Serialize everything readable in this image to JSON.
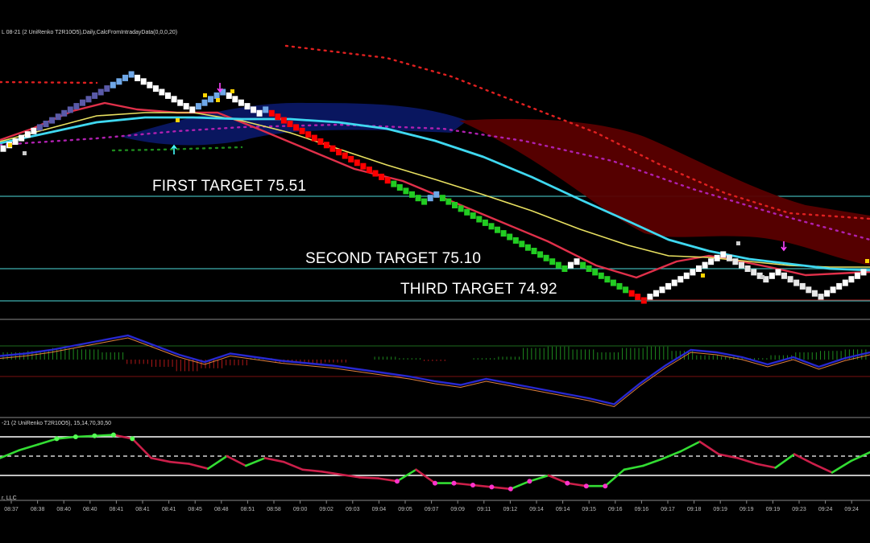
{
  "header": {
    "main_title": "L 08-21 (2 UniRenko T2R10O5),Daily,CalcFromIntradayData(0,0,0,20)",
    "osc_title": "-21 (2 UniRenko T2R10O5), 15,14,70,30,50",
    "copyright_fragment": "r, LLC"
  },
  "targets": [
    {
      "label": "FIRST TARGET 75.51",
      "level": 75.51
    },
    {
      "label": "SECOND TARGET 75.10",
      "level": 75.1
    },
    {
      "label": "THIRD TARGET 74.92",
      "level": 74.92
    }
  ],
  "colors": {
    "background": "#000000",
    "target_line": "#3fb0b0",
    "renko_up_start": "#ffffff",
    "renko_up_blue": "#5a5aa8",
    "renko_down": "#ff0000",
    "renko_down_green": "#22cc22",
    "ma_red": "#e0304a",
    "ma_yellow": "#e8e060",
    "ma_cyan": "#3fd8f0",
    "cloud_blue": "#0a1a70",
    "cloud_red": "#5a0000",
    "dots_red": "#e02020",
    "dots_purple": "#b020b0",
    "macd_blue": "#2828d0",
    "macd_orange": "#e08040",
    "hist_green": "#1e8a1e",
    "hist_red": "#b01818",
    "rsi_green": "#33dd33",
    "rsi_red": "#cc1f4a",
    "rsi_marker_pink": "#ff33cc",
    "rsi_marker_green": "#55ff55"
  },
  "chart_data": {
    "type": "candlestick",
    "x_tick_labels": [
      "08:37",
      "08:38",
      "08:40",
      "08:40",
      "08:41",
      "08:41",
      "08:41",
      "08:45",
      "08:48",
      "08:51",
      "08:58",
      "09:00",
      "09:02",
      "09:03",
      "09:04",
      "09:05",
      "09:07",
      "09:09",
      "09:11",
      "09:12",
      "09:14",
      "09:14",
      "09:15",
      "09:16",
      "09:16",
      "09:17",
      "09:18",
      "09:19",
      "09:19",
      "09:19",
      "09:23",
      "09:24",
      "09:24",
      "09:2"
    ],
    "price_panel": {
      "horizontal_levels": [
        75.51,
        75.1,
        74.92
      ],
      "renko_closes": [
        75.78,
        75.8,
        75.82,
        75.84,
        75.86,
        75.88,
        75.9,
        75.92,
        75.94,
        75.96,
        75.98,
        76.0,
        76.02,
        76.04,
        76.06,
        76.08,
        76.1,
        76.12,
        76.14,
        76.16,
        76.18,
        76.2,
        76.18,
        76.16,
        76.14,
        76.12,
        76.1,
        76.08,
        76.06,
        76.04,
        76.02,
        76.0,
        76.02,
        76.04,
        76.06,
        76.08,
        76.1,
        76.08,
        76.06,
        76.04,
        76.02,
        76.0,
        75.98,
        76.0,
        75.98,
        75.96,
        75.94,
        75.92,
        75.9,
        75.88,
        75.86,
        75.84,
        75.82,
        75.8,
        75.78,
        75.76,
        75.74,
        75.72,
        75.7,
        75.68,
        75.66,
        75.64,
        75.62,
        75.6,
        75.58,
        75.56,
        75.54,
        75.52,
        75.5,
        75.48,
        75.5,
        75.52,
        75.5,
        75.48,
        75.46,
        75.44,
        75.42,
        75.4,
        75.38,
        75.36,
        75.34,
        75.32,
        75.3,
        75.28,
        75.26,
        75.24,
        75.22,
        75.2,
        75.18,
        75.16,
        75.14,
        75.12,
        75.1,
        75.12,
        75.14,
        75.12,
        75.1,
        75.08,
        75.06,
        75.04,
        75.02,
        75.0,
        74.98,
        74.96,
        74.94,
        74.92,
        74.94,
        74.96,
        74.98,
        75.0,
        75.02,
        75.04,
        75.06,
        75.08,
        75.1,
        75.12,
        75.14,
        75.16,
        75.18,
        75.16,
        75.14,
        75.12,
        75.1,
        75.08,
        75.06,
        75.04,
        75.06,
        75.08,
        75.06,
        75.04,
        75.02,
        75.0,
        74.98,
        74.96,
        74.94,
        74.96,
        74.98,
        75.0,
        75.02,
        75.04,
        75.06,
        75.08
      ],
      "markers_down_arrow": [
        76.24,
        76.22,
        75.22
      ],
      "markers_up_arrow": [
        75.82
      ]
    },
    "oscillator_panel": {
      "line_blue": [
        0.3,
        0.5,
        0.8,
        1.2,
        1.6,
        2.0,
        1.2,
        0.4,
        -0.2,
        0.5,
        0.2,
        -0.1,
        -0.3,
        -0.5,
        -0.8,
        -1.1,
        -1.4,
        -1.8,
        -2.1,
        -1.6,
        -2.0,
        -2.4,
        -2.8,
        -3.2,
        -3.7,
        -2.0,
        -0.5,
        0.8,
        0.6,
        0.2,
        -0.4,
        0.2,
        -0.6,
        0.1,
        0.6
      ],
      "histogram": [
        0.5,
        0.6,
        0.8,
        0.7,
        0.5,
        -0.3,
        -0.5,
        -0.8,
        -0.6,
        -0.4,
        0.1,
        -0.2,
        -0.3,
        -0.2,
        0.0,
        0.2,
        0.1,
        -0.1,
        0.0,
        0.1,
        0.2,
        0.8,
        0.9,
        0.7,
        0.5,
        0.8,
        0.9,
        0.6,
        0.3,
        0.2,
        0.1,
        0.3,
        0.5,
        0.6,
        0.7
      ]
    },
    "rsi_panel": {
      "levels": [
        70,
        50,
        30
      ],
      "values": [
        48,
        56,
        62,
        68,
        70,
        71,
        72,
        68,
        48,
        44,
        42,
        37,
        50,
        40,
        48,
        44,
        36,
        34,
        31,
        28,
        27,
        24,
        36,
        22,
        22,
        20,
        18,
        16,
        24,
        30,
        22,
        19,
        19,
        36,
        40,
        47,
        55,
        65,
        52,
        48,
        42,
        38,
        52,
        42,
        33,
        45,
        54
      ]
    }
  }
}
